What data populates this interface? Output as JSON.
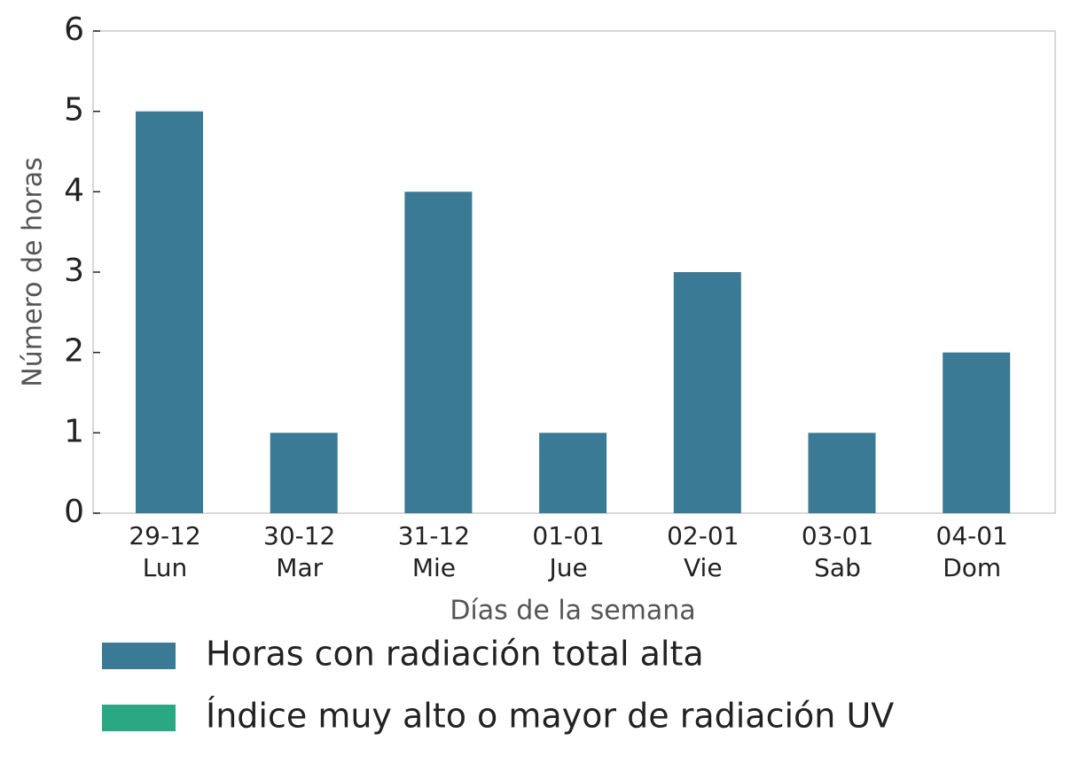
{
  "chart_data": {
    "type": "bar",
    "xlabel": "Días de la semana",
    "ylabel": "Número de horas",
    "categories": [
      [
        "29-12",
        "Lun"
      ],
      [
        "30-12",
        "Mar"
      ],
      [
        "31-12",
        "Mie"
      ],
      [
        "01-01",
        "Jue"
      ],
      [
        "02-01",
        "Vie"
      ],
      [
        "03-01",
        "Sab"
      ],
      [
        "04-01",
        "Dom"
      ]
    ],
    "series": [
      {
        "name": "Horas con radiación total alta",
        "color": "#3a7a94",
        "values": [
          5,
          1,
          4,
          1,
          3,
          1,
          2
        ]
      },
      {
        "name": "Índice muy alto o mayor de radiación UV",
        "color": "#2aa884",
        "values": [
          0,
          0,
          0,
          0,
          0,
          0,
          0
        ]
      }
    ],
    "ylim": [
      0,
      6
    ],
    "yticks": [
      0,
      1,
      2,
      3,
      4,
      5,
      6
    ],
    "grid": false,
    "legend": "bottom-left"
  }
}
